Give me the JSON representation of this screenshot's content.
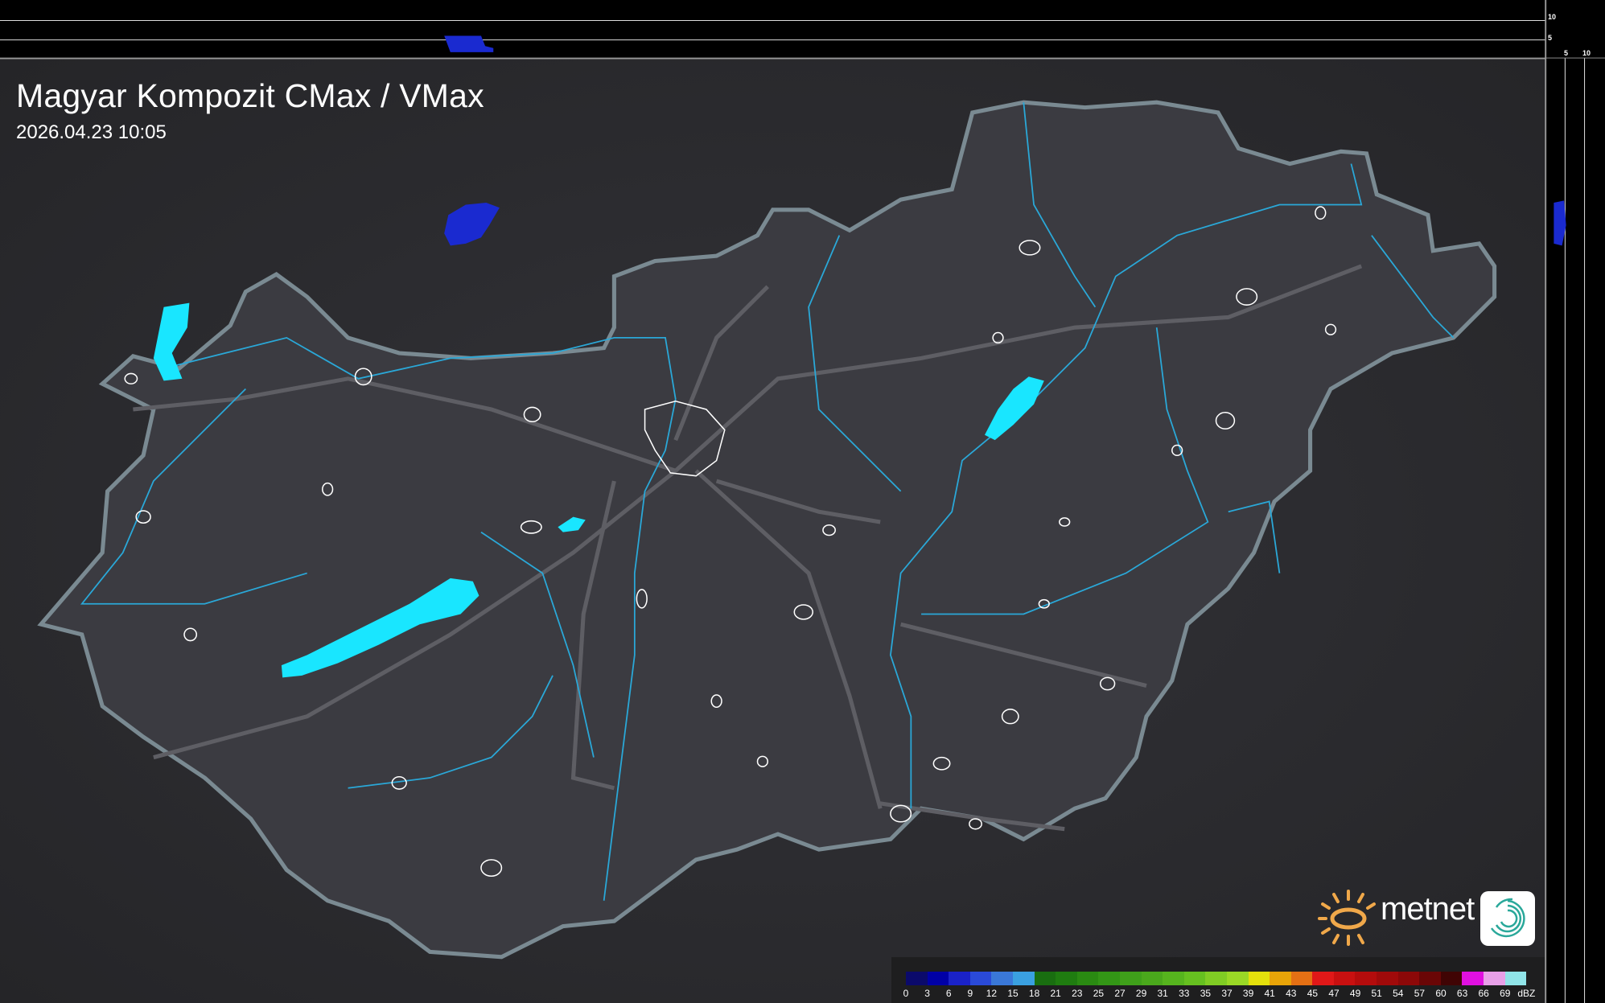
{
  "header": {
    "title": "Magyar Kompozit CMax / VMax",
    "timestamp": "2026.04.23 10:05"
  },
  "cross_section": {
    "top_strip_ticks": [
      "10",
      "5"
    ],
    "side_strip_ticks": [
      "5",
      "10"
    ]
  },
  "legend": {
    "unit": "dBZ",
    "values": [
      "0",
      "3",
      "6",
      "9",
      "12",
      "15",
      "18",
      "21",
      "23",
      "25",
      "27",
      "29",
      "31",
      "33",
      "35",
      "37",
      "39",
      "41",
      "43",
      "45",
      "47",
      "49",
      "51",
      "54",
      "57",
      "60",
      "63",
      "66",
      "69"
    ],
    "colors": [
      "#0b0a6b",
      "#0000a6",
      "#1a22c8",
      "#2a4ad8",
      "#3a78d8",
      "#3aa0e0",
      "#196e10",
      "#1f7c10",
      "#2a8a12",
      "#339616",
      "#3fa01a",
      "#4aa81c",
      "#56b41e",
      "#66c020",
      "#80cc24",
      "#9ad826",
      "#e4e00c",
      "#e8a408",
      "#e47014",
      "#e01818",
      "#c81010",
      "#b40c0c",
      "#a00a0a",
      "#8c0808",
      "#6a0606",
      "#400404",
      "#e010e0",
      "#e8a0e8",
      "#90e4e8"
    ]
  },
  "map": {
    "lake_color": "#19e6ff",
    "echo_color": "#1a2ad0",
    "river_color": "#2aa8d8",
    "border_color": "#7a8a92"
  },
  "logo": {
    "brand": "metnet"
  }
}
